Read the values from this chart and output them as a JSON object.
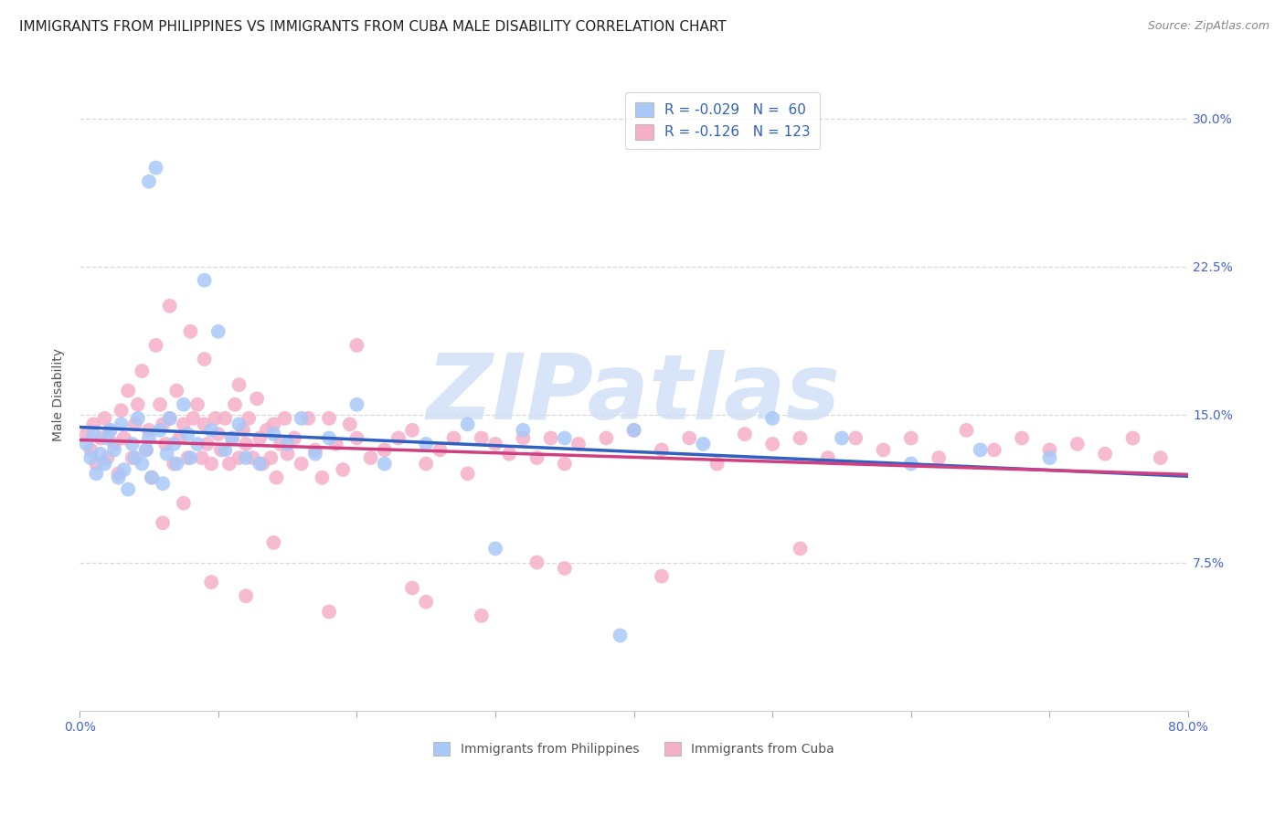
{
  "title": "IMMIGRANTS FROM PHILIPPINES VS IMMIGRANTS FROM CUBA MALE DISABILITY CORRELATION CHART",
  "source": "Source: ZipAtlas.com",
  "ylabel": "Male Disability",
  "xlim": [
    0.0,
    0.8
  ],
  "ylim": [
    0.0,
    0.32
  ],
  "xtick_positions": [
    0.0,
    0.1,
    0.2,
    0.3,
    0.4,
    0.5,
    0.6,
    0.7,
    0.8
  ],
  "xticklabels": [
    "0.0%",
    "",
    "",
    "",
    "",
    "",
    "",
    "",
    "80.0%"
  ],
  "ytick_positions": [
    0.075,
    0.15,
    0.225,
    0.3
  ],
  "yticklabels": [
    "7.5%",
    "15.0%",
    "22.5%",
    "30.0%"
  ],
  "legend1_label": "R = -0.029   N =  60",
  "legend2_label": "R = -0.126   N = 123",
  "philippines_N": 60,
  "cuba_N": 123,
  "philippines_scatter_color": "#a8c8f8",
  "cuba_scatter_color": "#f5b0c8",
  "philippines_line_color": "#3060c0",
  "cuba_line_color": "#d04080",
  "background_color": "#ffffff",
  "grid_color": "#d8d8d8",
  "title_fontsize": 11,
  "axis_label_fontsize": 10,
  "tick_fontsize": 10,
  "source_fontsize": 9,
  "watermark_text": "ZIPatlas",
  "watermark_color": "#ccddf8",
  "watermark_fontsize": 72,
  "ph_x": [
    0.005,
    0.008,
    0.01,
    0.012,
    0.015,
    0.018,
    0.02,
    0.022,
    0.025,
    0.028,
    0.03,
    0.032,
    0.035,
    0.038,
    0.04,
    0.042,
    0.045,
    0.048,
    0.05,
    0.052,
    0.055,
    0.058,
    0.06,
    0.063,
    0.065,
    0.068,
    0.07,
    0.075,
    0.078,
    0.08,
    0.085,
    0.09,
    0.095,
    0.1,
    0.105,
    0.11,
    0.115,
    0.12,
    0.13,
    0.14,
    0.15,
    0.16,
    0.17,
    0.18,
    0.2,
    0.22,
    0.25,
    0.28,
    0.3,
    0.32,
    0.35,
    0.4,
    0.45,
    0.5,
    0.55,
    0.6,
    0.65,
    0.7,
    0.05,
    0.39
  ],
  "ph_y": [
    0.135,
    0.128,
    0.14,
    0.12,
    0.13,
    0.125,
    0.138,
    0.142,
    0.132,
    0.118,
    0.145,
    0.122,
    0.112,
    0.135,
    0.128,
    0.148,
    0.125,
    0.132,
    0.138,
    0.118,
    0.275,
    0.142,
    0.115,
    0.13,
    0.148,
    0.135,
    0.125,
    0.155,
    0.14,
    0.128,
    0.135,
    0.218,
    0.142,
    0.192,
    0.132,
    0.138,
    0.145,
    0.128,
    0.125,
    0.14,
    0.135,
    0.148,
    0.13,
    0.138,
    0.155,
    0.125,
    0.135,
    0.145,
    0.082,
    0.142,
    0.138,
    0.142,
    0.135,
    0.148,
    0.138,
    0.125,
    0.132,
    0.128,
    0.268,
    0.038
  ],
  "cu_x": [
    0.005,
    0.008,
    0.01,
    0.012,
    0.015,
    0.018,
    0.02,
    0.022,
    0.025,
    0.028,
    0.03,
    0.032,
    0.035,
    0.038,
    0.04,
    0.042,
    0.045,
    0.048,
    0.05,
    0.052,
    0.055,
    0.058,
    0.06,
    0.062,
    0.065,
    0.068,
    0.07,
    0.072,
    0.075,
    0.078,
    0.08,
    0.082,
    0.085,
    0.088,
    0.09,
    0.092,
    0.095,
    0.098,
    0.1,
    0.102,
    0.105,
    0.108,
    0.11,
    0.112,
    0.115,
    0.118,
    0.12,
    0.122,
    0.125,
    0.128,
    0.13,
    0.132,
    0.135,
    0.138,
    0.14,
    0.142,
    0.145,
    0.148,
    0.15,
    0.155,
    0.16,
    0.165,
    0.17,
    0.175,
    0.18,
    0.185,
    0.19,
    0.195,
    0.2,
    0.21,
    0.22,
    0.23,
    0.24,
    0.25,
    0.26,
    0.27,
    0.28,
    0.29,
    0.3,
    0.31,
    0.32,
    0.33,
    0.34,
    0.35,
    0.36,
    0.38,
    0.4,
    0.42,
    0.44,
    0.46,
    0.48,
    0.5,
    0.52,
    0.54,
    0.56,
    0.58,
    0.6,
    0.62,
    0.64,
    0.66,
    0.68,
    0.7,
    0.72,
    0.74,
    0.76,
    0.78,
    0.065,
    0.09,
    0.115,
    0.14,
    0.2,
    0.25,
    0.33,
    0.42,
    0.52,
    0.06,
    0.075,
    0.095,
    0.12,
    0.18,
    0.24,
    0.29,
    0.35
  ],
  "cu_y": [
    0.14,
    0.132,
    0.145,
    0.125,
    0.138,
    0.148,
    0.128,
    0.142,
    0.135,
    0.12,
    0.152,
    0.138,
    0.162,
    0.128,
    0.145,
    0.155,
    0.172,
    0.132,
    0.142,
    0.118,
    0.185,
    0.155,
    0.145,
    0.135,
    0.148,
    0.125,
    0.162,
    0.138,
    0.145,
    0.128,
    0.192,
    0.148,
    0.155,
    0.128,
    0.145,
    0.135,
    0.125,
    0.148,
    0.14,
    0.132,
    0.148,
    0.125,
    0.138,
    0.155,
    0.128,
    0.142,
    0.135,
    0.148,
    0.128,
    0.158,
    0.138,
    0.125,
    0.142,
    0.128,
    0.145,
    0.118,
    0.135,
    0.148,
    0.13,
    0.138,
    0.125,
    0.148,
    0.132,
    0.118,
    0.148,
    0.135,
    0.122,
    0.145,
    0.138,
    0.128,
    0.132,
    0.138,
    0.142,
    0.125,
    0.132,
    0.138,
    0.12,
    0.138,
    0.135,
    0.13,
    0.138,
    0.128,
    0.138,
    0.125,
    0.135,
    0.138,
    0.142,
    0.132,
    0.138,
    0.125,
    0.14,
    0.135,
    0.138,
    0.128,
    0.138,
    0.132,
    0.138,
    0.128,
    0.142,
    0.132,
    0.138,
    0.132,
    0.135,
    0.13,
    0.138,
    0.128,
    0.205,
    0.178,
    0.165,
    0.085,
    0.185,
    0.055,
    0.075,
    0.068,
    0.082,
    0.095,
    0.105,
    0.065,
    0.058,
    0.05,
    0.062,
    0.048,
    0.072
  ]
}
